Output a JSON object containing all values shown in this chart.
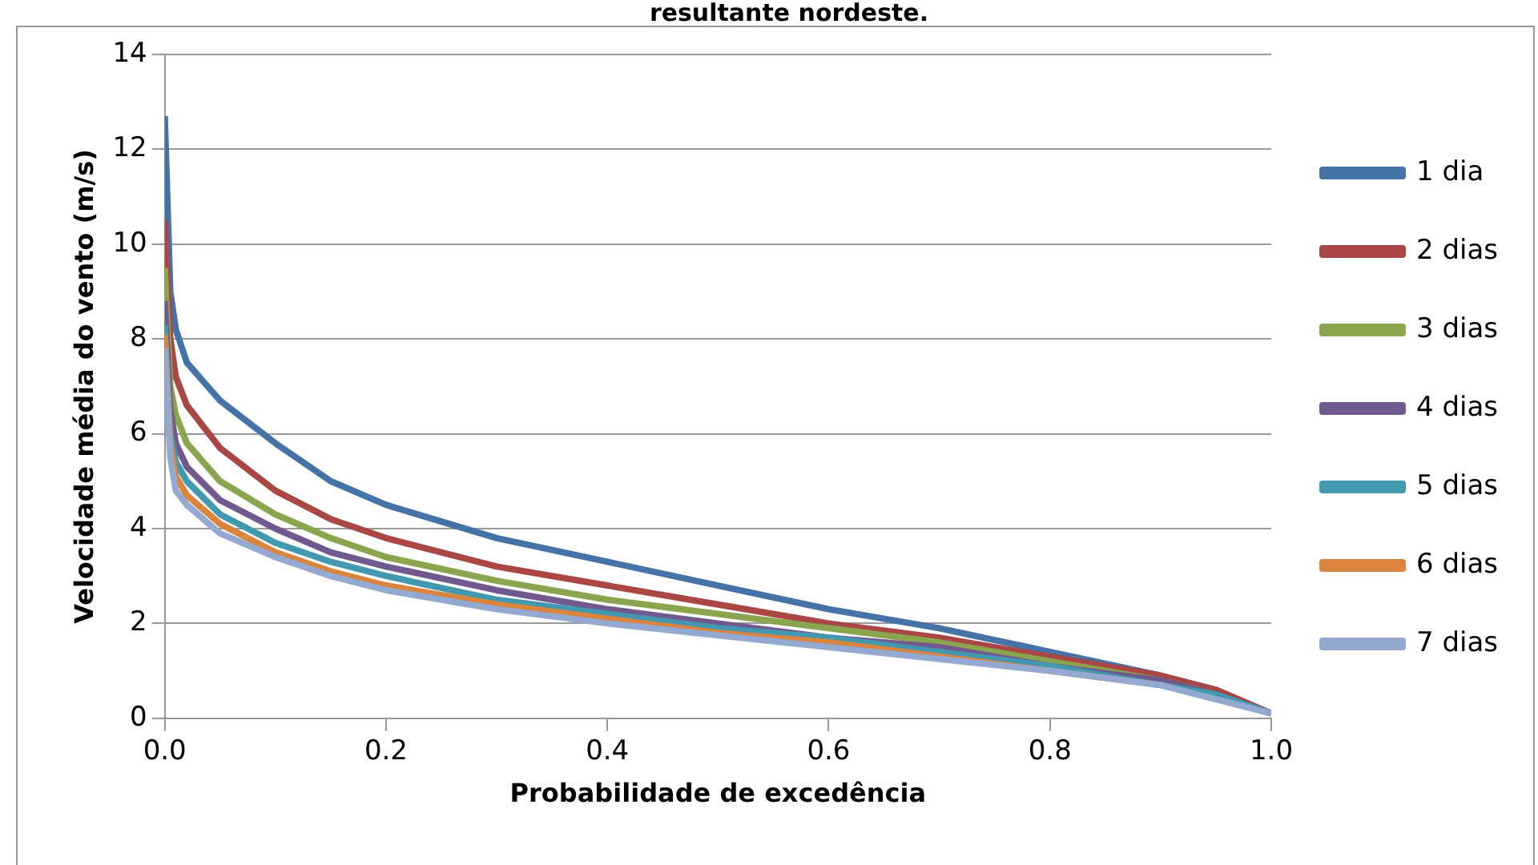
{
  "chart_data": {
    "type": "line",
    "title": "resultante nordeste.",
    "xlabel": "Probabilidade de excedência",
    "ylabel": "Velocidade média do vento (m/s)",
    "x": [
      0,
      0.005,
      0.01,
      0.02,
      0.05,
      0.1,
      0.15,
      0.2,
      0.3,
      0.4,
      0.5,
      0.6,
      0.7,
      0.8,
      0.9,
      0.95,
      1.0
    ],
    "series": [
      {
        "name": "1 dia",
        "color": "#4572a7",
        "values": [
          12.7,
          9,
          8.2,
          7.5,
          6.7,
          5.8,
          5.0,
          4.5,
          3.8,
          3.3,
          2.8,
          2.3,
          1.9,
          1.4,
          0.9,
          0.6,
          0.1
        ]
      },
      {
        "name": "2 dias",
        "color": "#aa4643",
        "values": [
          10.5,
          8,
          7.2,
          6.6,
          5.7,
          4.8,
          4.2,
          3.8,
          3.2,
          2.8,
          2.4,
          2.0,
          1.7,
          1.3,
          0.9,
          0.6,
          0.1
        ]
      },
      {
        "name": "3 dias",
        "color": "#89a54e",
        "values": [
          9.5,
          7,
          6.4,
          5.8,
          5.0,
          4.3,
          3.8,
          3.4,
          2.9,
          2.5,
          2.2,
          1.9,
          1.6,
          1.2,
          0.8,
          0.5,
          0.1
        ]
      },
      {
        "name": "4 dias",
        "color": "#71588f",
        "values": [
          8.8,
          6.5,
          5.8,
          5.3,
          4.6,
          4.0,
          3.5,
          3.2,
          2.7,
          2.3,
          2.0,
          1.7,
          1.5,
          1.1,
          0.8,
          0.5,
          0.1
        ]
      },
      {
        "name": "5 dias",
        "color": "#4198af",
        "values": [
          8.3,
          6,
          5.4,
          5.0,
          4.3,
          3.7,
          3.3,
          3.0,
          2.5,
          2.2,
          1.9,
          1.7,
          1.4,
          1.1,
          0.7,
          0.5,
          0.1
        ]
      },
      {
        "name": "6 dias",
        "color": "#db843d",
        "values": [
          8.1,
          5.8,
          5.1,
          4.7,
          4.1,
          3.5,
          3.1,
          2.8,
          2.4,
          2.1,
          1.8,
          1.6,
          1.3,
          1.0,
          0.7,
          null,
          null
        ]
      },
      {
        "name": "7 dias",
        "color": "#93a9cf",
        "values": [
          7.8,
          5.5,
          4.8,
          4.5,
          3.9,
          3.4,
          3.0,
          2.7,
          2.3,
          2.0,
          1.75,
          1.5,
          1.25,
          1.0,
          0.7,
          0.4,
          0.1
        ]
      }
    ],
    "xlim": [
      0,
      1
    ],
    "xticks": [
      {
        "value": 0,
        "label": "0.0"
      },
      {
        "value": 0.2,
        "label": "0.2"
      },
      {
        "value": 0.4,
        "label": "0.4"
      },
      {
        "value": 0.6,
        "label": "0.6"
      },
      {
        "value": 0.8,
        "label": "0.8"
      },
      {
        "value": 1,
        "label": "1.0"
      }
    ],
    "ylim": [
      0,
      14
    ],
    "yticks": [
      0,
      2,
      4,
      6,
      8,
      10,
      12,
      14
    ],
    "grid": "y",
    "legend": "right",
    "marker": "none",
    "line_style": "solid"
  }
}
